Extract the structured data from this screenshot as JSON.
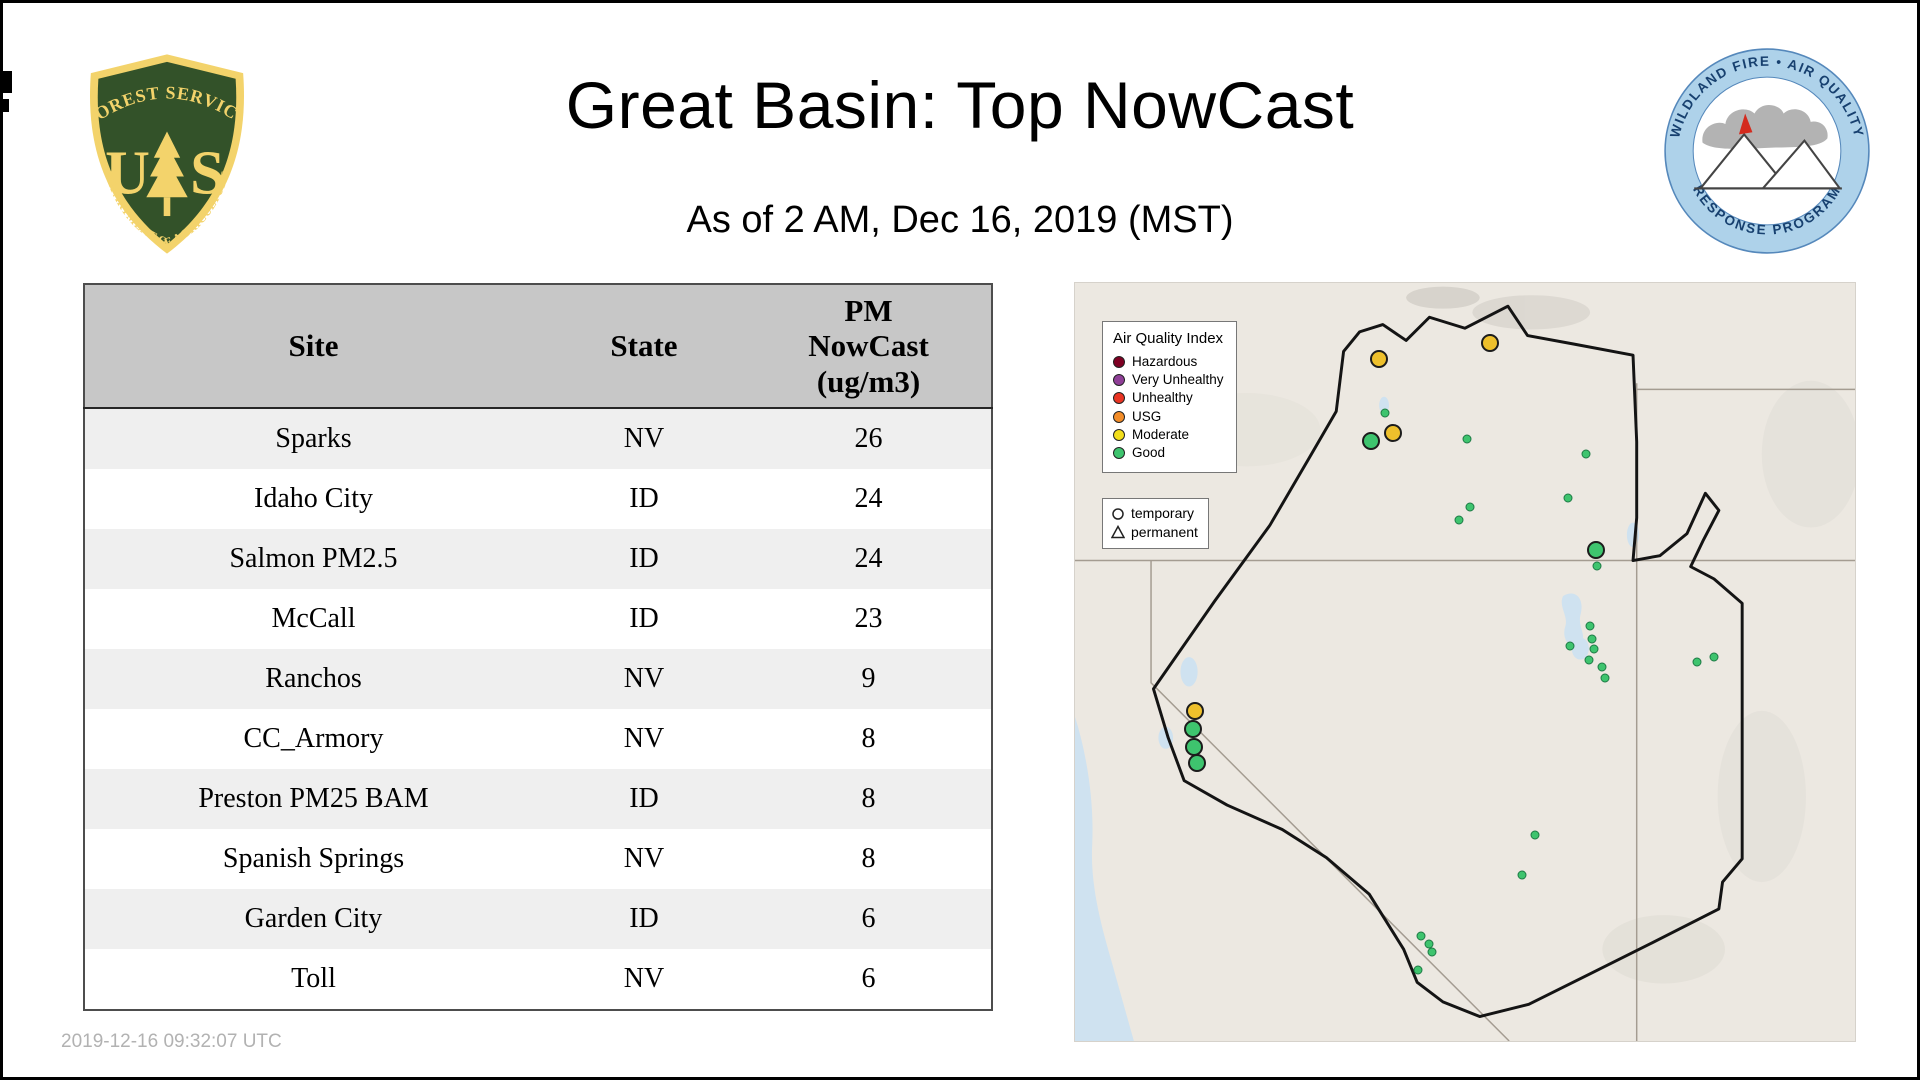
{
  "page": {
    "title": "Great Basin: Top NowCast",
    "subtitle": "As of  2 AM, Dec 16, 2019 (MST)",
    "timestamp": "2019-12-16 09:32:07 UTC"
  },
  "usfs_logo": {
    "top_text": "FOREST SERVICE",
    "letter_u": "U",
    "letter_s": "S",
    "bottom_text": "DEPARTMENT OF AGRICULTURE"
  },
  "airfire_logo": {
    "top_text": "WILDLAND FIRE • AIR QUALITY",
    "bottom_text": "RESPONSE PROGRAM"
  },
  "table": {
    "headers": {
      "site": "Site",
      "state": "State",
      "pm": "PM NowCast (ug/m3)"
    },
    "rows": [
      {
        "site": "Sparks",
        "state": "NV",
        "value": "26"
      },
      {
        "site": "Idaho City",
        "state": "ID",
        "value": "24"
      },
      {
        "site": "Salmon PM2.5",
        "state": "ID",
        "value": "24"
      },
      {
        "site": "McCall",
        "state": "ID",
        "value": "23"
      },
      {
        "site": "Ranchos",
        "state": "NV",
        "value": "9"
      },
      {
        "site": "CC_Armory",
        "state": "NV",
        "value": "8"
      },
      {
        "site": "Preston PM25 BAM",
        "state": "ID",
        "value": "8"
      },
      {
        "site": "Spanish Springs",
        "state": "NV",
        "value": "8"
      },
      {
        "site": "Garden City",
        "state": "ID",
        "value": "6"
      },
      {
        "site": "Toll",
        "state": "NV",
        "value": "6"
      }
    ]
  },
  "map": {
    "aqi_legend": {
      "title": "Air Quality Index",
      "items": [
        {
          "label": "Hazardous",
          "color": "#7e0023"
        },
        {
          "label": "Very Unhealthy",
          "color": "#8f3f97"
        },
        {
          "label": "Unhealthy",
          "color": "#e93423"
        },
        {
          "label": "USG",
          "color": "#f28c28"
        },
        {
          "label": "Moderate",
          "color": "#f2de1b"
        },
        {
          "label": "Good",
          "color": "#3ec46e"
        }
      ]
    },
    "type_legend": {
      "items": [
        {
          "label": "temporary",
          "shape": "circle"
        },
        {
          "label": "permanent",
          "shape": "triangle"
        }
      ]
    },
    "colors": {
      "moderate": "#eec02c",
      "good": "#3ec46e"
    },
    "markers": {
      "temporary": [
        {
          "x": 39.0,
          "y": 10.0,
          "aqi": "moderate"
        },
        {
          "x": 53.2,
          "y": 7.9,
          "aqi": "moderate"
        },
        {
          "x": 40.8,
          "y": 19.8,
          "aqi": "moderate"
        },
        {
          "x": 37.9,
          "y": 20.9,
          "aqi": "good"
        },
        {
          "x": 66.8,
          "y": 35.2,
          "aqi": "good"
        },
        {
          "x": 15.4,
          "y": 56.4,
          "aqi": "moderate"
        },
        {
          "x": 15.1,
          "y": 58.9,
          "aqi": "good"
        },
        {
          "x": 15.3,
          "y": 61.2,
          "aqi": "good"
        },
        {
          "x": 15.6,
          "y": 63.3,
          "aqi": "good"
        }
      ],
      "permanent": [
        {
          "x": 39.7,
          "y": 17.2
        },
        {
          "x": 50.3,
          "y": 20.6
        },
        {
          "x": 65.5,
          "y": 22.5
        },
        {
          "x": 63.2,
          "y": 28.4
        },
        {
          "x": 50.6,
          "y": 29.6
        },
        {
          "x": 49.2,
          "y": 31.3
        },
        {
          "x": 66.9,
          "y": 37.3
        },
        {
          "x": 66.0,
          "y": 45.2
        },
        {
          "x": 66.3,
          "y": 46.9
        },
        {
          "x": 63.5,
          "y": 47.9
        },
        {
          "x": 66.5,
          "y": 48.3
        },
        {
          "x": 65.9,
          "y": 49.7
        },
        {
          "x": 67.5,
          "y": 50.7
        },
        {
          "x": 68.0,
          "y": 52.1
        },
        {
          "x": 79.8,
          "y": 50.0
        },
        {
          "x": 81.9,
          "y": 49.4
        },
        {
          "x": 59.0,
          "y": 72.8
        },
        {
          "x": 57.3,
          "y": 78.1
        },
        {
          "x": 44.4,
          "y": 86.2
        },
        {
          "x": 45.4,
          "y": 87.2
        },
        {
          "x": 45.8,
          "y": 88.3
        },
        {
          "x": 44.0,
          "y": 90.6
        }
      ]
    }
  }
}
